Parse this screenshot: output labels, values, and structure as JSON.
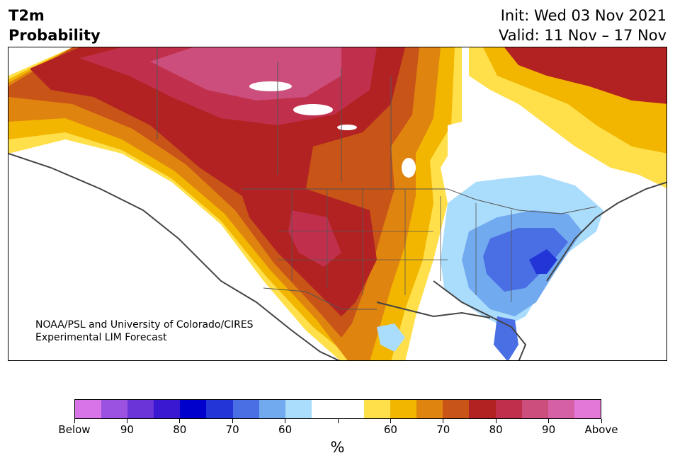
{
  "header": {
    "title_line1": "T2m",
    "title_line2": "Probability",
    "init": "Init: Wed 03 Nov 2021",
    "valid": "Valid: 11 Nov – 17 Nov"
  },
  "map": {
    "credit_line1": "NOAA/PSL and University of Colorado/CIRES",
    "credit_line2": "Experimental LIM Forecast"
  },
  "colorbar": {
    "colors": [
      "#d873e8",
      "#9c52e0",
      "#6b34d8",
      "#3a18d2",
      "#0000cc",
      "#2236d8",
      "#4a6fe4",
      "#72aaf0",
      "#aadcfc",
      "#ffffff",
      "#ffffff",
      "#ffe04a",
      "#f2b600",
      "#e08410",
      "#c85418",
      "#b22222",
      "#c0304c",
      "#cc4e7c",
      "#d660a6",
      "#e478d8"
    ],
    "labels": [
      "Below",
      "90",
      "80",
      "70",
      "60",
      "",
      "60",
      "70",
      "80",
      "90",
      "Above"
    ],
    "unit": "%"
  }
}
